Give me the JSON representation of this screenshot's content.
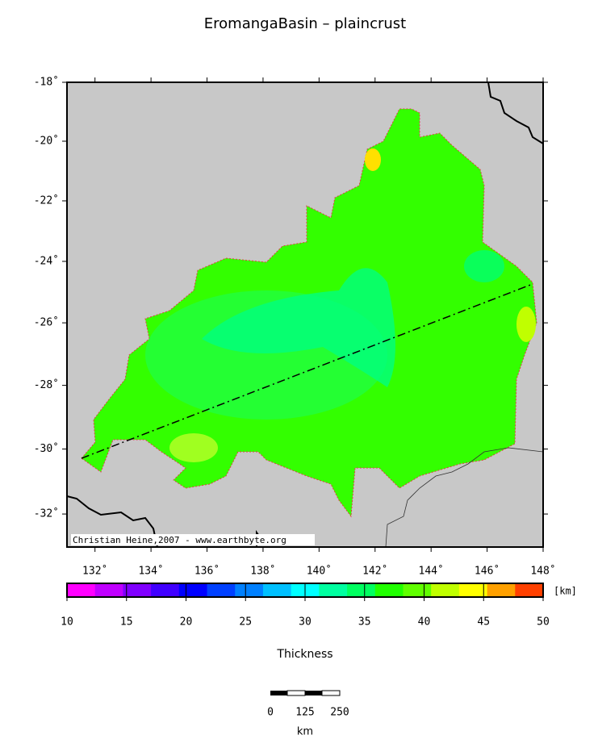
{
  "title": "EromangaBasin – plaincrust",
  "map": {
    "xlim": [
      131,
      148
    ],
    "ylim": [
      -33,
      -18
    ],
    "lat_ticks": [
      {
        "value": -18,
        "label": "-18˚"
      },
      {
        "value": -20,
        "label": "-20˚"
      },
      {
        "value": -22,
        "label": "-22˚"
      },
      {
        "value": -24,
        "label": "-24˚"
      },
      {
        "value": -26,
        "label": "-26˚"
      },
      {
        "value": -28,
        "label": "-28˚"
      },
      {
        "value": -30,
        "label": "-30˚"
      },
      {
        "value": -32,
        "label": "-32˚"
      }
    ],
    "lon_ticks": [
      {
        "value": 132,
        "label": "132˚"
      },
      {
        "value": 134,
        "label": "134˚"
      },
      {
        "value": 136,
        "label": "136˚"
      },
      {
        "value": 138,
        "label": "138˚"
      },
      {
        "value": 140,
        "label": "140˚"
      },
      {
        "value": 142,
        "label": "142˚"
      },
      {
        "value": 144,
        "label": "144˚"
      },
      {
        "value": 146,
        "label": "146˚"
      },
      {
        "value": 148,
        "label": "148˚"
      }
    ],
    "credit": "Christian Heine,2007 - www.earthbyte.org"
  },
  "colorbar": {
    "range": [
      10,
      50
    ],
    "ticks": [
      10,
      15,
      20,
      25,
      30,
      35,
      40,
      45,
      50
    ],
    "unit": "[km]",
    "label": "Thickness",
    "colors": [
      "#ff00ff",
      "#c000ff",
      "#8000ff",
      "#4000ff",
      "#0000ff",
      "#0040ff",
      "#0080ff",
      "#00c0ff",
      "#00ffff",
      "#00ffa0",
      "#00ff60",
      "#20ff00",
      "#60ff00",
      "#c0ff00",
      "#ffff00",
      "#ffa000",
      "#ff4000"
    ]
  },
  "scalebar": {
    "labels": [
      "0",
      "125",
      "250"
    ],
    "unit": "km"
  }
}
